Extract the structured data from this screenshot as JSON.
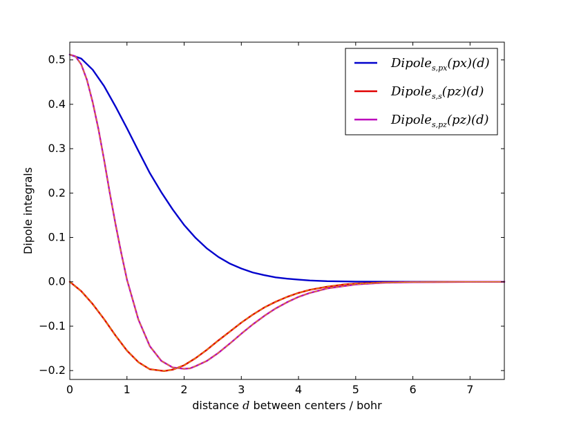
{
  "chart_data": {
    "type": "line",
    "title": "",
    "xlabel": "distance d between centers / bohr",
    "xlabel_parts": {
      "pre": "distance ",
      "var": "d",
      "post": " between centers / bohr"
    },
    "ylabel": "Dipole integrals",
    "xlim": [
      0,
      7.6
    ],
    "ylim": [
      -0.22,
      0.54
    ],
    "xticks": [
      0,
      1,
      2,
      3,
      4,
      5,
      6,
      7
    ],
    "yticks": [
      -0.2,
      -0.1,
      0.0,
      0.1,
      0.2,
      0.3,
      0.4,
      0.5
    ],
    "xtick_labels": [
      "0",
      "1",
      "2",
      "3",
      "4",
      "5",
      "6",
      "7"
    ],
    "ytick_labels": [
      "−0.2",
      "−0.1",
      "0.0",
      "0.1",
      "0.2",
      "0.3",
      "0.4",
      "0.5"
    ],
    "grid": false,
    "legend_position": "top-right",
    "series": [
      {
        "name": "Dipole_{s,px}(px)(d)",
        "legend": {
          "base": "Dipole",
          "sub": "s,px",
          "arg": "(px)(d)"
        },
        "color": "#0000cc",
        "dashed": false,
        "x": [
          0,
          0.2,
          0.4,
          0.6,
          0.8,
          1.0,
          1.2,
          1.4,
          1.6,
          1.8,
          2.0,
          2.2,
          2.4,
          2.6,
          2.8,
          3.0,
          3.2,
          3.4,
          3.6,
          3.8,
          4.0,
          4.2,
          4.5,
          5.0,
          5.5,
          6.0,
          7.0,
          7.6
        ],
        "y": [
          0.512,
          0.503,
          0.478,
          0.441,
          0.395,
          0.346,
          0.295,
          0.245,
          0.202,
          0.163,
          0.128,
          0.099,
          0.075,
          0.056,
          0.041,
          0.03,
          0.021,
          0.015,
          0.01,
          0.007,
          0.005,
          0.003,
          0.0015,
          0.0005,
          0.0002,
          0.0001,
          0.0,
          0.0
        ]
      },
      {
        "name": "Dipole_{s,s}(pz)(d)",
        "legend": {
          "base": "Dipole",
          "sub": "s,s",
          "arg": "(pz)(d)"
        },
        "color": "#e00000",
        "dashed": false,
        "x": [
          0,
          0.2,
          0.4,
          0.6,
          0.8,
          1.0,
          1.2,
          1.4,
          1.65,
          1.8,
          2.0,
          2.2,
          2.4,
          2.6,
          2.8,
          3.0,
          3.2,
          3.4,
          3.6,
          3.8,
          4.0,
          4.2,
          4.5,
          4.8,
          5.0,
          5.5,
          6.0,
          7.0,
          7.6
        ],
        "y": [
          0.0,
          -0.021,
          -0.05,
          -0.084,
          -0.121,
          -0.155,
          -0.181,
          -0.197,
          -0.201,
          -0.198,
          -0.188,
          -0.172,
          -0.153,
          -0.132,
          -0.112,
          -0.092,
          -0.074,
          -0.058,
          -0.045,
          -0.034,
          -0.025,
          -0.018,
          -0.011,
          -0.006,
          -0.004,
          -0.0015,
          -0.0005,
          0.0,
          0.0
        ]
      },
      {
        "name": "Dipole_{s,pz}(pz)(d)",
        "legend": {
          "base": "Dipole",
          "sub": "s,pz",
          "arg": "(pz)(d)"
        },
        "color": "#bb00bb",
        "dashed": false,
        "x": [
          0,
          0.1,
          0.2,
          0.3,
          0.4,
          0.5,
          0.6,
          0.7,
          0.8,
          0.9,
          1.0,
          1.2,
          1.4,
          1.6,
          1.8,
          2.0,
          2.1,
          2.2,
          2.4,
          2.6,
          2.8,
          3.0,
          3.2,
          3.4,
          3.6,
          3.8,
          4.0,
          4.2,
          4.5,
          5.0,
          5.5,
          6.0,
          7.0,
          7.6
        ],
        "y": [
          0.512,
          0.508,
          0.49,
          0.455,
          0.405,
          0.345,
          0.275,
          0.2,
          0.13,
          0.065,
          0.005,
          -0.085,
          -0.145,
          -0.178,
          -0.193,
          -0.196,
          -0.195,
          -0.19,
          -0.178,
          -0.16,
          -0.139,
          -0.117,
          -0.096,
          -0.077,
          -0.06,
          -0.046,
          -0.034,
          -0.025,
          -0.015,
          -0.006,
          -0.002,
          -0.0008,
          0.0,
          0.0
        ]
      },
      {
        "name": "",
        "legend": null,
        "color": "#e0a000",
        "dashed": true,
        "x": [
          0,
          0.1,
          0.2,
          0.3,
          0.4,
          0.5,
          0.6,
          0.7,
          0.8,
          0.9,
          1.0,
          1.2,
          1.4,
          1.6,
          1.8,
          2.0,
          2.1,
          2.2,
          2.4,
          2.6,
          2.8,
          3.0,
          3.2,
          3.4,
          3.6,
          3.8,
          4.0,
          4.2,
          4.5,
          5.0,
          5.5,
          6.0,
          7.0,
          7.6
        ],
        "y": [
          0.512,
          0.508,
          0.49,
          0.455,
          0.405,
          0.345,
          0.275,
          0.2,
          0.13,
          0.065,
          0.005,
          -0.085,
          -0.145,
          -0.178,
          -0.193,
          -0.196,
          -0.195,
          -0.19,
          -0.178,
          -0.16,
          -0.139,
          -0.117,
          -0.096,
          -0.077,
          -0.06,
          -0.046,
          -0.034,
          -0.025,
          -0.015,
          -0.006,
          -0.002,
          -0.0008,
          0.0,
          0.0
        ]
      },
      {
        "name": "",
        "legend": null,
        "color": "#e0a000",
        "dashed": true,
        "x": [
          0,
          0.2,
          0.4,
          0.6,
          0.8,
          1.0,
          1.2,
          1.4,
          1.65,
          1.8,
          2.0,
          2.2,
          2.4,
          2.6,
          2.8,
          3.0,
          3.2,
          3.4,
          3.6,
          3.8,
          4.0,
          4.2,
          4.5,
          4.8,
          5.0,
          5.5,
          6.0,
          7.0,
          7.6
        ],
        "y": [
          0.0,
          -0.021,
          -0.05,
          -0.084,
          -0.121,
          -0.155,
          -0.181,
          -0.197,
          -0.201,
          -0.198,
          -0.188,
          -0.172,
          -0.153,
          -0.132,
          -0.112,
          -0.092,
          -0.074,
          -0.058,
          -0.045,
          -0.034,
          -0.025,
          -0.018,
          -0.011,
          -0.006,
          -0.004,
          -0.0015,
          -0.0005,
          0.0,
          0.0
        ]
      }
    ]
  }
}
